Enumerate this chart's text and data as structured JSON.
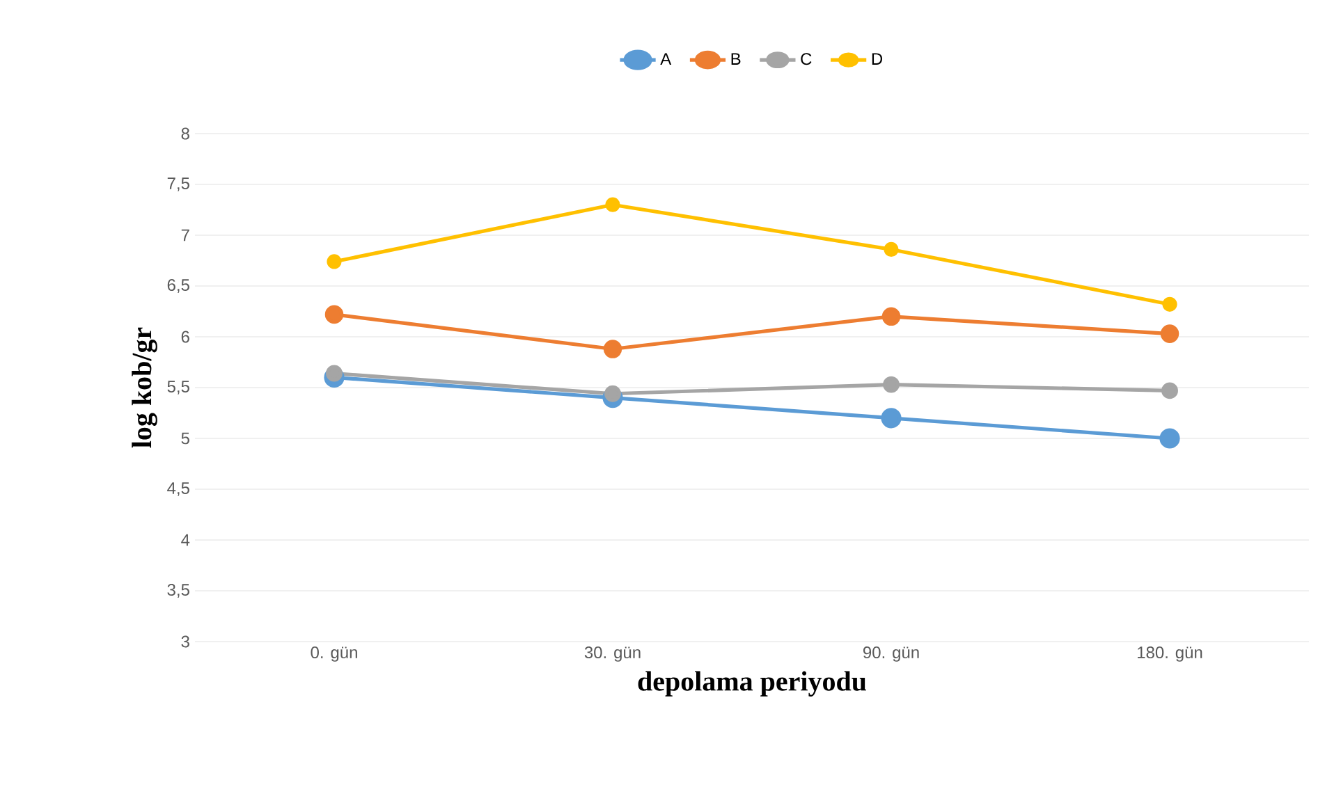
{
  "chart_data": {
    "type": "line",
    "xlabel": "depolama periyodu",
    "ylabel": "log kob/gr",
    "categories": [
      "0. gün",
      "30. gün",
      "90. gün",
      "180. gün"
    ],
    "series": [
      {
        "name": "A",
        "color": "#5b9bd5",
        "values": [
          5.6,
          5.4,
          5.2,
          5.0
        ]
      },
      {
        "name": "B",
        "color": "#ed7d31",
        "values": [
          6.22,
          5.88,
          6.2,
          6.03
        ]
      },
      {
        "name": "C",
        "color": "#a5a5a5",
        "values": [
          5.64,
          5.44,
          5.53,
          5.47
        ]
      },
      {
        "name": "D",
        "color": "#ffc000",
        "values": [
          6.74,
          7.3,
          6.86,
          6.32
        ]
      }
    ],
    "ylim": [
      3,
      8
    ],
    "yticks": [
      3,
      {
        "value": 3.5,
        "label": "3,5"
      },
      4,
      {
        "value": 4.5,
        "label": "4,5"
      },
      5,
      {
        "value": 5.5,
        "label": "5,5"
      },
      6,
      {
        "value": 6.5,
        "label": "6,5"
      },
      7,
      {
        "value": 7.5,
        "label": "7,5"
      },
      8
    ],
    "grid": "y",
    "legend": "top",
    "marker": "circle",
    "line_style": "solid"
  }
}
